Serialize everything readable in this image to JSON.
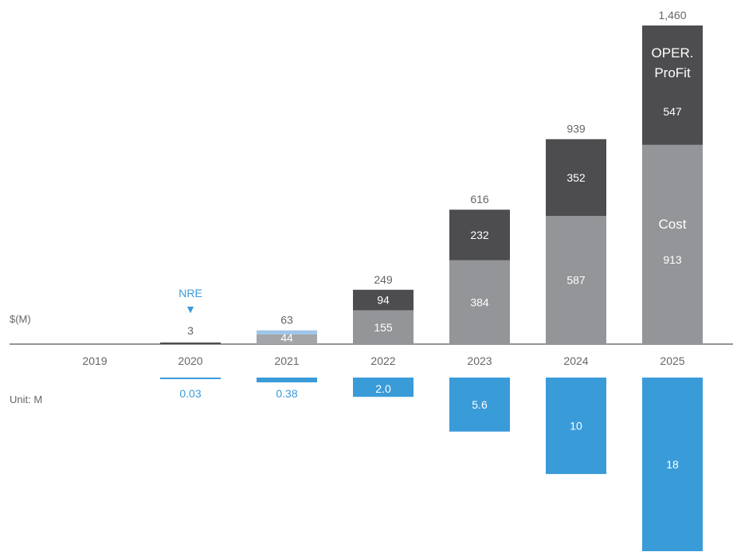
{
  "chart_data": {
    "type": "bar",
    "categories": [
      "2019",
      "2020",
      "2021",
      "2022",
      "2023",
      "2024",
      "2025"
    ],
    "ylabel": "$(M)",
    "lower_label": "Unit: M",
    "series": [
      {
        "name": "Cost",
        "values": [
          0,
          3,
          44,
          155,
          384,
          587,
          913
        ]
      },
      {
        "name": "OPER. ProFit",
        "values": [
          0,
          0,
          19,
          94,
          232,
          352,
          547
        ]
      }
    ],
    "totals": [
      "",
      "",
      "63",
      "249",
      "616",
      "939",
      "1,460"
    ],
    "cost_labels": [
      "",
      "3",
      "44",
      "155",
      "384",
      "587",
      "913"
    ],
    "profit_labels": [
      "",
      "",
      "",
      "94",
      "232",
      "352",
      "547"
    ],
    "units": {
      "name": "Unit",
      "values": [
        0,
        0.03,
        0.38,
        2.0,
        5.6,
        10,
        18
      ],
      "labels": [
        "",
        "0.03",
        "0.38",
        "2.0",
        "5.6",
        "10",
        "18"
      ]
    },
    "annotation": {
      "text": "NRE",
      "marker": "▼",
      "category": "2020"
    },
    "inline_labels": {
      "cost": "Cost",
      "profit_line1": "OPER.",
      "profit_line2": "ProFit"
    },
    "colors": {
      "cost": "#939598",
      "profit": "#4d4d4f",
      "cost_2021": "#a3a5a8",
      "profit_2021": "#9fc5e8",
      "units": "#3a9bd9",
      "axis": "#555555",
      "text": "#666666",
      "nre": "#3a9bd9"
    },
    "ylim": [
      0,
      1460
    ]
  }
}
